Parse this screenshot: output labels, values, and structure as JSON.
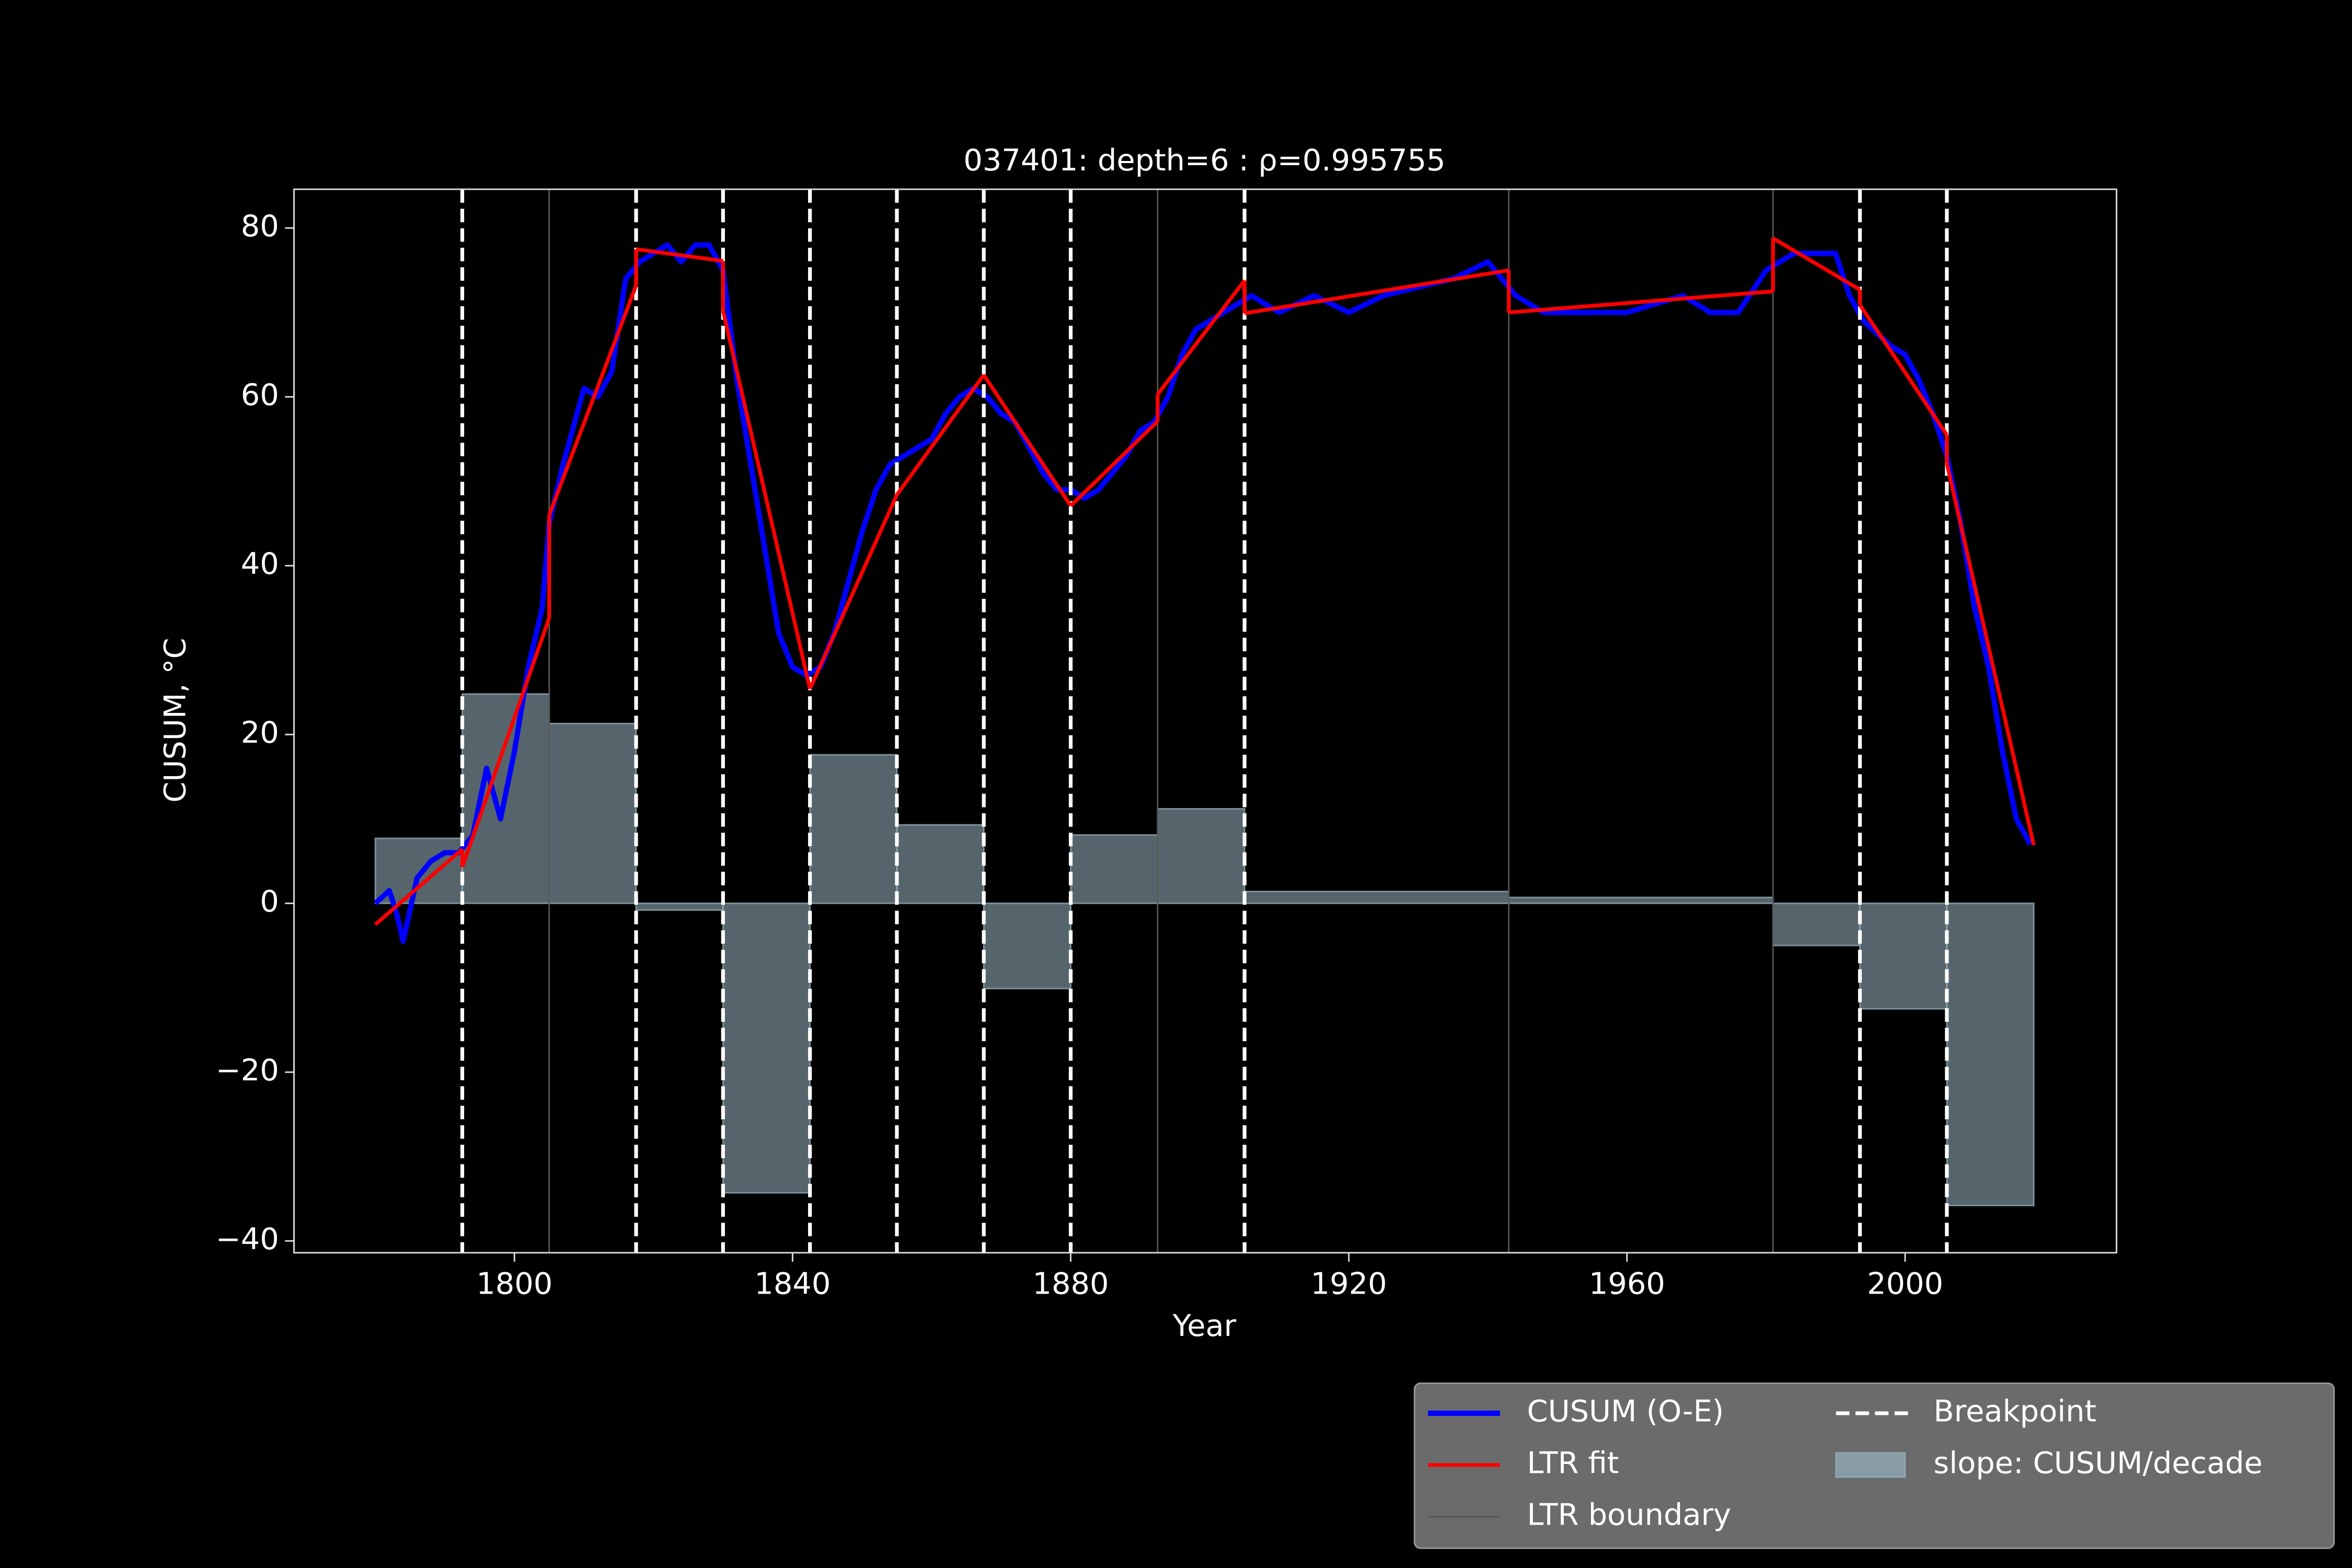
{
  "chart_data": {
    "type": "line",
    "title": "037401: depth=6 : ρ=0.995755",
    "xlabel": "Year",
    "ylabel": "CUSUM, °C",
    "xlim": [
      1768.3,
      2030.4
    ],
    "ylim": [
      -41.4,
      84.6
    ],
    "xticks": [
      1800,
      1840,
      1880,
      1920,
      1960,
      2000
    ],
    "yticks": [
      {
        "value": -40,
        "label": "−40"
      },
      {
        "value": -20,
        "label": "−20"
      },
      0,
      20,
      40,
      60,
      80
    ],
    "series": [
      {
        "name": "CUSUM (O-E)",
        "color": "#0000ff",
        "x": [
          1780,
          1782,
          1783,
          1784,
          1786,
          1788,
          1790,
          1792,
          1794,
          1796,
          1798,
          1800,
          1802,
          1804,
          1805,
          1807,
          1809,
          1810,
          1812,
          1814,
          1816,
          1818,
          1820,
          1822,
          1824,
          1826,
          1828,
          1830,
          1832,
          1834,
          1836,
          1838,
          1840,
          1842,
          1844,
          1846,
          1848,
          1850,
          1852,
          1854,
          1856,
          1858,
          1860,
          1862,
          1864,
          1866,
          1868,
          1870,
          1872,
          1874,
          1876,
          1878,
          1880,
          1882,
          1884,
          1886,
          1888,
          1890,
          1892,
          1894,
          1896,
          1898,
          1900,
          1902,
          1904,
          1906,
          1910,
          1915,
          1920,
          1925,
          1930,
          1935,
          1940,
          1944,
          1948,
          1952,
          1956,
          1960,
          1964,
          1968,
          1972,
          1976,
          1980,
          1984,
          1988,
          1990,
          1992,
          1994,
          1998,
          2000,
          2002,
          2004,
          2006,
          2008,
          2010,
          2012,
          2014,
          2016,
          2018
        ],
        "values": [
          0,
          1.5,
          -1,
          -4.5,
          3,
          5,
          6,
          6,
          8,
          16,
          10,
          18,
          28,
          35,
          45,
          52,
          58,
          61,
          60,
          63,
          74,
          76,
          77,
          78,
          76,
          78,
          78,
          75,
          62,
          52,
          42,
          32,
          28,
          27,
          28,
          32,
          38,
          44,
          49,
          52,
          53,
          54,
          55,
          58,
          60,
          61,
          60,
          58,
          57,
          54,
          51,
          49,
          49,
          48,
          49,
          51,
          53,
          56,
          57,
          60,
          65,
          68,
          69,
          70,
          71,
          72,
          70,
          72,
          70,
          72,
          73,
          74,
          76,
          72,
          70,
          70,
          70,
          70,
          71,
          72,
          70,
          70,
          75,
          77,
          77,
          77,
          72,
          69,
          66,
          65,
          62,
          58,
          53,
          45,
          35,
          28,
          18,
          10,
          7
        ]
      },
      {
        "name": "LTR fit",
        "color": "#ff0000",
        "segments": [
          {
            "x": [
              1780,
              1792.5
            ],
            "values": [
              -2.5,
              6.4
            ]
          },
          {
            "x": [
              1792.5,
              1805
            ],
            "values": [
              4.3,
              33.8
            ]
          },
          {
            "x": [
              1805,
              1817.5
            ],
            "values": [
              46,
              73.2
            ]
          },
          {
            "x": [
              1817.5,
              1830
            ],
            "values": [
              77.5,
              76.1
            ]
          },
          {
            "x": [
              1830,
              1842.5
            ],
            "values": [
              70.2,
              25.4
            ]
          },
          {
            "x": [
              1842.5,
              1855
            ],
            "values": [
              25.4,
              48.4
            ]
          },
          {
            "x": [
              1855,
              1867.5
            ],
            "values": [
              48.4,
              62.6
            ]
          },
          {
            "x": [
              1867.5,
              1880
            ],
            "values": [
              62.6,
              47.1
            ]
          },
          {
            "x": [
              1880,
              1892.5
            ],
            "values": [
              47.1,
              57.1
            ]
          },
          {
            "x": [
              1892.5,
              1905
            ],
            "values": [
              60.3,
              73.8
            ]
          },
          {
            "x": [
              1905,
              1943
            ],
            "values": [
              69.9,
              75
            ]
          },
          {
            "x": [
              1943,
              1981
            ],
            "values": [
              70,
              72.5
            ]
          },
          {
            "x": [
              1981,
              1993.5
            ],
            "values": [
              78.8,
              72.7
            ]
          },
          {
            "x": [
              1993.5,
              2006
            ],
            "values": [
              70.9,
              55.5
            ]
          },
          {
            "x": [
              2006,
              2018.5
            ],
            "values": [
              52.1,
              6.9
            ]
          }
        ]
      }
    ],
    "boundaries": {
      "name": "LTR boundary",
      "color": "#555555",
      "x": [
        1805,
        1892.5,
        1943,
        1981
      ]
    },
    "breakpoints": {
      "name": "Breakpoint",
      "color": "#ffffff",
      "x": [
        1792.5,
        1817.5,
        1830,
        1842.5,
        1855,
        1867.5,
        1880,
        1905,
        1993.5,
        2006
      ]
    },
    "slope": {
      "name": "slope: CUSUM/decade",
      "color": "#8fa9b3",
      "bins": [
        1780,
        1792.5,
        1805,
        1817.5,
        1830,
        1842.5,
        1855,
        1867.5,
        1880,
        1892.5,
        1905,
        1943,
        1981,
        1993.5,
        2006,
        2018.5
      ],
      "values": [
        7.7,
        24.8,
        21.3,
        -0.8,
        -34.3,
        17.6,
        9.3,
        -10.1,
        8.1,
        11.2,
        1.4,
        0.7,
        -5,
        -12.5,
        -35.8
      ]
    }
  }
}
